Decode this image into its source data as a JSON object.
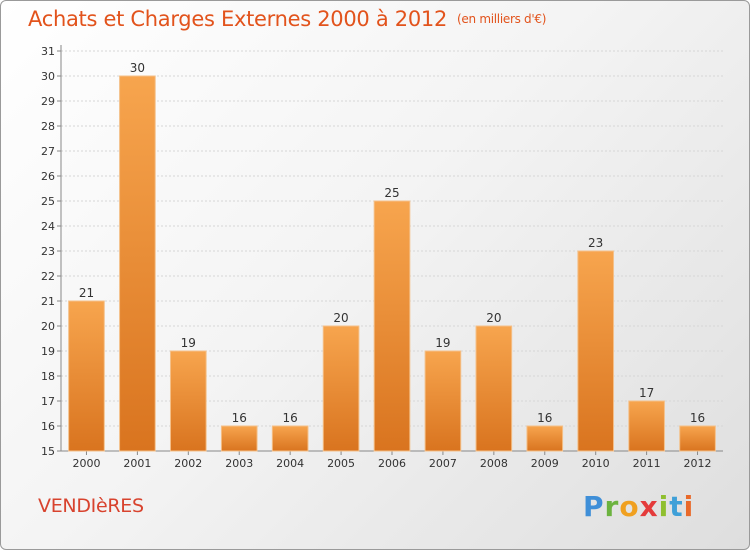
{
  "header": {
    "title": "Achats et Charges Externes 2000 à 2012",
    "subtitle": "(en milliers d'€)"
  },
  "commune": "VENDIèRES",
  "logo": {
    "letters": [
      "P",
      "r",
      "o",
      "x",
      "i",
      "t",
      "i"
    ]
  },
  "colors": {
    "title": "#e2531c",
    "bar_light": "#f7a54e",
    "bar_dark": "#d9741f",
    "commune": "#d8432e"
  },
  "chart_data": {
    "type": "bar",
    "title": "Achats et Charges Externes 2000 à 2012",
    "subtitle": "(en milliers d'€)",
    "categories": [
      "2000",
      "2001",
      "2002",
      "2003",
      "2004",
      "2005",
      "2006",
      "2007",
      "2008",
      "2009",
      "2010",
      "2011",
      "2012"
    ],
    "values": [
      21,
      30,
      19,
      16,
      16,
      20,
      25,
      19,
      20,
      16,
      23,
      17,
      16
    ],
    "ylim": [
      15,
      31
    ],
    "yticks": [
      15,
      16,
      17,
      18,
      19,
      20,
      21,
      22,
      23,
      24,
      25,
      26,
      27,
      28,
      29,
      30,
      31
    ],
    "grid": true,
    "legend": "none"
  }
}
